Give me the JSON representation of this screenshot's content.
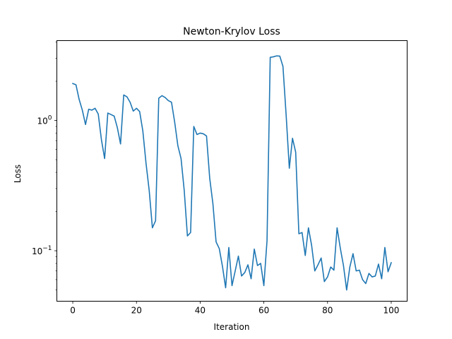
{
  "chart_data": {
    "type": "line",
    "title": "Newton-Krylov Loss",
    "xlabel": "Iteration",
    "ylabel": "Loss",
    "yscale": "log",
    "grid": false,
    "xlim": [
      -5,
      105
    ],
    "ylim": [
      0.041,
      4.1
    ],
    "x_ticks": [
      {
        "value": 0,
        "label": "0"
      },
      {
        "value": 20,
        "label": "20"
      },
      {
        "value": 40,
        "label": "40"
      },
      {
        "value": 60,
        "label": "60"
      },
      {
        "value": 80,
        "label": "80"
      },
      {
        "value": 100,
        "label": "100"
      }
    ],
    "y_major_ticks": [
      {
        "value": 0.1,
        "label": "10",
        "exp": "−1"
      },
      {
        "value": 1,
        "label": "10",
        "exp": "0"
      }
    ],
    "y_minor_ticks": [
      0.05,
      0.06,
      0.07,
      0.08,
      0.09,
      0.2,
      0.3,
      0.4,
      0.5,
      0.6,
      0.7,
      0.8,
      0.9,
      2,
      3,
      4
    ],
    "series": [
      {
        "color": "#1f77b4",
        "x": [
          0,
          1,
          2,
          3,
          4,
          5,
          6,
          7,
          8,
          9,
          10,
          11,
          12,
          13,
          14,
          15,
          16,
          17,
          18,
          19,
          20,
          21,
          22,
          23,
          24,
          25,
          26,
          27,
          28,
          29,
          30,
          31,
          32,
          33,
          34,
          35,
          36,
          37,
          38,
          39,
          40,
          41,
          42,
          43,
          44,
          45,
          46,
          47,
          48,
          49,
          50,
          51,
          52,
          53,
          54,
          55,
          56,
          57,
          58,
          59,
          60,
          61,
          62,
          63,
          64,
          65,
          66,
          67,
          68,
          69,
          70,
          71,
          72,
          73,
          74,
          75,
          76,
          77,
          78,
          79,
          80,
          81,
          82,
          83,
          84,
          85,
          86,
          87,
          88,
          89,
          90,
          91,
          92,
          93,
          94,
          95,
          96,
          97,
          98,
          99,
          100
        ],
        "y": [
          1.92,
          1.88,
          1.45,
          1.2,
          0.93,
          1.22,
          1.2,
          1.24,
          1.12,
          0.71,
          0.51,
          1.14,
          1.11,
          1.08,
          0.88,
          0.66,
          1.57,
          1.52,
          1.38,
          1.18,
          1.24,
          1.17,
          0.83,
          0.47,
          0.29,
          0.15,
          0.17,
          1.48,
          1.55,
          1.5,
          1.42,
          1.38,
          0.97,
          0.64,
          0.51,
          0.29,
          0.13,
          0.138,
          0.9,
          0.78,
          0.8,
          0.79,
          0.76,
          0.36,
          0.23,
          0.117,
          0.104,
          0.076,
          0.052,
          0.106,
          0.054,
          0.07,
          0.091,
          0.064,
          0.068,
          0.078,
          0.061,
          0.103,
          0.077,
          0.08,
          0.054,
          0.12,
          3.05,
          3.08,
          3.13,
          3.12,
          2.6,
          1.1,
          0.43,
          0.73,
          0.57,
          0.135,
          0.138,
          0.092,
          0.15,
          0.11,
          0.07,
          0.078,
          0.088,
          0.058,
          0.063,
          0.075,
          0.071,
          0.15,
          0.105,
          0.077,
          0.05,
          0.075,
          0.095,
          0.07,
          0.071,
          0.06,
          0.056,
          0.067,
          0.063,
          0.064,
          0.079,
          0.061,
          0.106,
          0.069,
          0.081
        ]
      }
    ]
  }
}
